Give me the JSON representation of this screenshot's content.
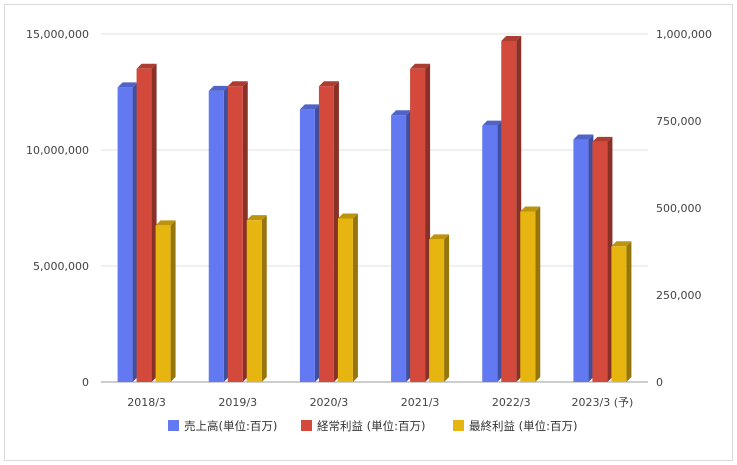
{
  "chart_data": {
    "type": "bar",
    "categories": [
      "2018/3",
      "2019/3",
      "2020/3",
      "2021/3",
      "2022/3",
      "2023/3 (予)"
    ],
    "series": [
      {
        "name": "売上高(単位:百万)",
        "axis": "left",
        "color": "#6279f2",
        "values": [
          12700000,
          12550000,
          11750000,
          11500000,
          11050000,
          10450000
        ]
      },
      {
        "name": "経常利益 (単位:百万)",
        "axis": "right",
        "color": "#d34a3c",
        "values": [
          900000,
          850000,
          850000,
          900000,
          980000,
          690000
        ]
      },
      {
        "name": "最終利益 (単位:百万)",
        "axis": "right",
        "color": "#e6b510",
        "values": [
          450000,
          465000,
          470000,
          410000,
          490000,
          390000
        ]
      }
    ],
    "ylim_left": [
      0,
      15000000
    ],
    "ylim_right": [
      0,
      1000000
    ],
    "yticks_left": [
      "0",
      "5,000,000",
      "10,000,000",
      "15,000,000"
    ],
    "yticks_right": [
      "0",
      "250,000",
      "500,000",
      "750,000",
      "1,000,000"
    ],
    "grid": true,
    "legend_position": "bottom",
    "style": "3d-bar"
  }
}
